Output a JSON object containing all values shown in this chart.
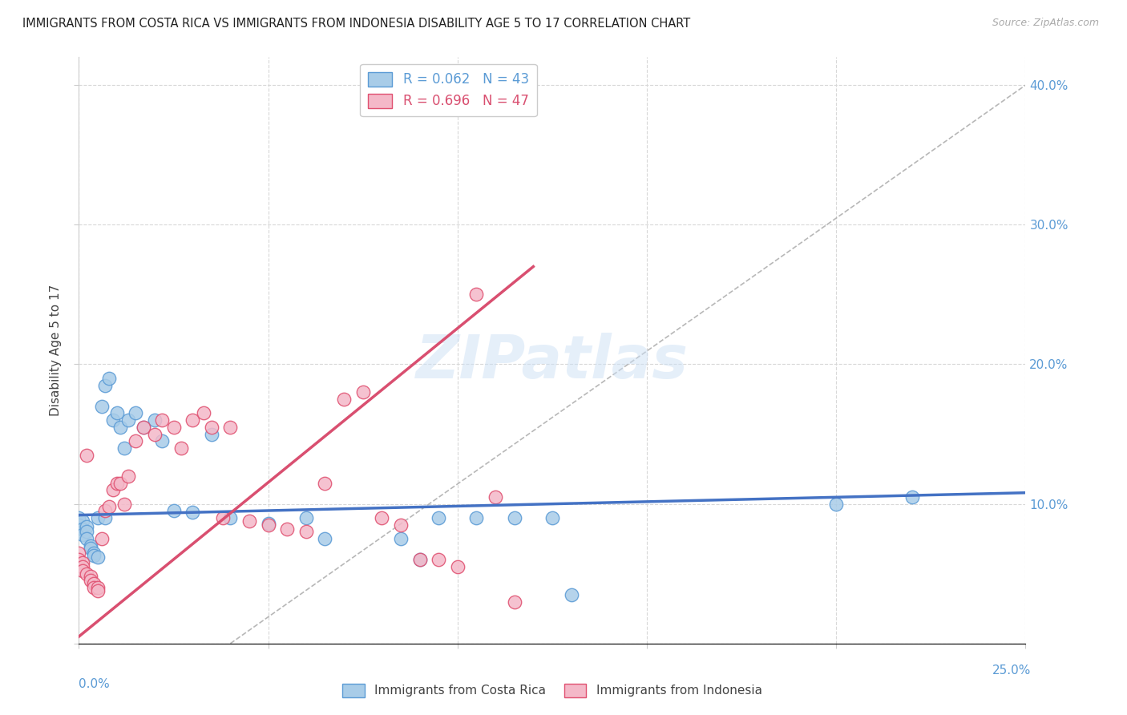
{
  "title": "IMMIGRANTS FROM COSTA RICA VS IMMIGRANTS FROM INDONESIA DISABILITY AGE 5 TO 17 CORRELATION CHART",
  "source": "Source: ZipAtlas.com",
  "ylabel": "Disability Age 5 to 17",
  "legend_cr_label": "R = 0.062   N = 43",
  "legend_indo_label": "R = 0.696   N = 47",
  "legend_bottom_cr": "Immigrants from Costa Rica",
  "legend_bottom_indo": "Immigrants from Indonesia",
  "color_cr": "#a8cce8",
  "color_cr_edge": "#5b9bd5",
  "color_indo": "#f4b8c8",
  "color_indo_edge": "#e05070",
  "color_cr_line": "#4472c4",
  "color_indo_line": "#d94f70",
  "color_diagonal": "#b0b0b0",
  "xlim": [
    0.0,
    0.25
  ],
  "ylim": [
    0.0,
    0.42
  ],
  "yticks": [
    0.0,
    0.1,
    0.2,
    0.3,
    0.4
  ],
  "xticks": [
    0.0,
    0.05,
    0.1,
    0.15,
    0.2,
    0.25
  ],
  "cr_line_x": [
    0.0,
    0.25
  ],
  "cr_line_y": [
    0.092,
    0.108
  ],
  "indo_line_x": [
    0.0,
    0.12
  ],
  "indo_line_y": [
    0.005,
    0.27
  ],
  "cr_x": [
    0.0,
    0.0,
    0.001,
    0.001,
    0.001,
    0.002,
    0.002,
    0.002,
    0.003,
    0.003,
    0.004,
    0.004,
    0.005,
    0.005,
    0.006,
    0.007,
    0.007,
    0.008,
    0.009,
    0.01,
    0.011,
    0.012,
    0.013,
    0.015,
    0.017,
    0.02,
    0.022,
    0.025,
    0.03,
    0.035,
    0.04,
    0.05,
    0.06,
    0.065,
    0.085,
    0.09,
    0.095,
    0.105,
    0.115,
    0.125,
    0.13,
    0.2,
    0.22
  ],
  "cr_y": [
    0.09,
    0.085,
    0.088,
    0.082,
    0.078,
    0.084,
    0.08,
    0.075,
    0.07,
    0.068,
    0.065,
    0.063,
    0.062,
    0.09,
    0.17,
    0.185,
    0.09,
    0.19,
    0.16,
    0.165,
    0.155,
    0.14,
    0.16,
    0.165,
    0.155,
    0.16,
    0.145,
    0.095,
    0.094,
    0.15,
    0.09,
    0.086,
    0.09,
    0.075,
    0.075,
    0.06,
    0.09,
    0.09,
    0.09,
    0.09,
    0.035,
    0.1,
    0.105
  ],
  "indo_x": [
    0.0,
    0.0,
    0.001,
    0.001,
    0.001,
    0.002,
    0.002,
    0.003,
    0.003,
    0.004,
    0.004,
    0.005,
    0.005,
    0.006,
    0.007,
    0.008,
    0.009,
    0.01,
    0.011,
    0.012,
    0.013,
    0.015,
    0.017,
    0.02,
    0.022,
    0.025,
    0.027,
    0.03,
    0.033,
    0.035,
    0.038,
    0.04,
    0.045,
    0.05,
    0.055,
    0.06,
    0.065,
    0.07,
    0.075,
    0.08,
    0.085,
    0.09,
    0.095,
    0.1,
    0.105,
    0.11,
    0.115
  ],
  "indo_y": [
    0.065,
    0.06,
    0.058,
    0.055,
    0.052,
    0.05,
    0.135,
    0.048,
    0.045,
    0.043,
    0.04,
    0.04,
    0.038,
    0.075,
    0.095,
    0.098,
    0.11,
    0.115,
    0.115,
    0.1,
    0.12,
    0.145,
    0.155,
    0.15,
    0.16,
    0.155,
    0.14,
    0.16,
    0.165,
    0.155,
    0.09,
    0.155,
    0.088,
    0.085,
    0.082,
    0.08,
    0.115,
    0.175,
    0.18,
    0.09,
    0.085,
    0.06,
    0.06,
    0.055,
    0.25,
    0.105,
    0.03
  ]
}
